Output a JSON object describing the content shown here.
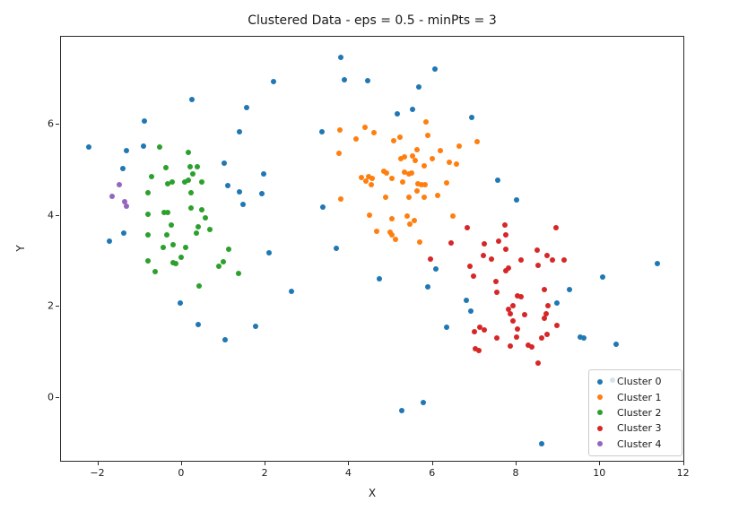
{
  "chart_data": {
    "type": "scatter",
    "title": "Clustered Data - eps = 0.5 - minPts = 3",
    "xlabel": "X",
    "ylabel": "Y",
    "xlim": [
      -2.89,
      12.03
    ],
    "ylim": [
      -1.42,
      7.94
    ],
    "xticks": [
      {
        "value": -2,
        "label": "−2"
      },
      {
        "value": 0,
        "label": "0"
      },
      {
        "value": 2,
        "label": "2"
      },
      {
        "value": 4,
        "label": "4"
      },
      {
        "value": 6,
        "label": "6"
      },
      {
        "value": 8,
        "label": "8"
      },
      {
        "value": 10,
        "label": "10"
      },
      {
        "value": 12,
        "label": "12"
      }
    ],
    "yticks": [
      {
        "value": 0,
        "label": "0"
      },
      {
        "value": 2,
        "label": "2"
      },
      {
        "value": 4,
        "label": "4"
      },
      {
        "value": 6,
        "label": "6"
      }
    ],
    "grid": false,
    "legend": {
      "position": "lower right",
      "bg_alpha": 0.8
    },
    "series": [
      {
        "name": "Cluster 0",
        "color": "#1f77b4",
        "points": [
          [
            0.23,
            6.57
          ],
          [
            1.55,
            6.39
          ],
          [
            -0.89,
            6.08
          ],
          [
            -2.23,
            5.51
          ],
          [
            -1.33,
            5.43
          ],
          [
            -0.91,
            5.53
          ],
          [
            1.37,
            5.86
          ],
          [
            -1.42,
            5.05
          ],
          [
            1.01,
            5.16
          ],
          [
            1.09,
            4.66
          ],
          [
            1.37,
            4.53
          ],
          [
            1.95,
            4.92
          ],
          [
            1.91,
            4.5
          ],
          [
            1.46,
            4.25
          ],
          [
            -1.39,
            3.62
          ],
          [
            -1.73,
            3.44
          ],
          [
            3.79,
            7.48
          ],
          [
            6.05,
            7.24
          ],
          [
            2.2,
            6.96
          ],
          [
            3.88,
            6.99
          ],
          [
            4.44,
            6.98
          ],
          [
            5.67,
            6.83
          ],
          [
            5.51,
            6.34
          ],
          [
            5.15,
            6.25
          ],
          [
            6.93,
            6.17
          ],
          [
            3.34,
            5.85
          ],
          [
            3.37,
            4.2
          ],
          [
            7.55,
            4.79
          ],
          [
            7.99,
            4.35
          ],
          [
            -0.04,
            2.09
          ],
          [
            0.39,
            1.62
          ],
          [
            1.76,
            1.57
          ],
          [
            1.03,
            1.27
          ],
          [
            2.08,
            3.19
          ],
          [
            3.69,
            3.28
          ],
          [
            4.71,
            2.61
          ],
          [
            2.62,
            2.35
          ],
          [
            6.07,
            2.83
          ],
          [
            5.87,
            2.44
          ],
          [
            6.79,
            2.14
          ],
          [
            6.9,
            1.92
          ],
          [
            6.33,
            1.55
          ],
          [
            5.77,
            -0.1
          ],
          [
            5.25,
            -0.27
          ],
          [
            11.36,
            2.96
          ],
          [
            10.05,
            2.65
          ],
          [
            9.26,
            2.38
          ],
          [
            8.97,
            2.09
          ],
          [
            9.52,
            1.34
          ],
          [
            9.61,
            1.32
          ],
          [
            10.37,
            1.18
          ],
          [
            8.6,
            -1.01
          ],
          [
            10.29,
            0.39
          ]
        ]
      },
      {
        "name": "Cluster 1",
        "color": "#ff7f0e",
        "points": [
          [
            3.77,
            5.9
          ],
          [
            4.38,
            5.95
          ],
          [
            4.6,
            5.83
          ],
          [
            4.16,
            5.7
          ],
          [
            5.07,
            5.65
          ],
          [
            5.21,
            5.73
          ],
          [
            5.83,
            6.07
          ],
          [
            5.87,
            5.78
          ],
          [
            3.75,
            5.37
          ],
          [
            5.62,
            5.46
          ],
          [
            6.18,
            5.43
          ],
          [
            6.62,
            5.53
          ],
          [
            7.05,
            5.64
          ],
          [
            5.23,
            5.26
          ],
          [
            5.31,
            5.29
          ],
          [
            5.52,
            5.32
          ],
          [
            5.57,
            5.22
          ],
          [
            5.99,
            5.26
          ],
          [
            6.39,
            5.18
          ],
          [
            6.57,
            5.14
          ],
          [
            5.79,
            5.1
          ],
          [
            5.32,
            4.97
          ],
          [
            5.42,
            4.92
          ],
          [
            5.49,
            4.94
          ],
          [
            4.82,
            4.98
          ],
          [
            4.89,
            4.95
          ],
          [
            4.3,
            4.85
          ],
          [
            4.46,
            4.87
          ],
          [
            4.55,
            4.82
          ],
          [
            4.39,
            4.76
          ],
          [
            4.53,
            4.69
          ],
          [
            5.03,
            4.82
          ],
          [
            5.27,
            4.74
          ],
          [
            5.64,
            4.7
          ],
          [
            5.73,
            4.69
          ],
          [
            5.82,
            4.68
          ],
          [
            5.63,
            4.55
          ],
          [
            6.12,
            4.46
          ],
          [
            6.32,
            4.73
          ],
          [
            3.8,
            4.38
          ],
          [
            4.88,
            4.41
          ],
          [
            5.42,
            4.41
          ],
          [
            5.79,
            4.42
          ],
          [
            4.49,
            4.02
          ],
          [
            5.02,
            3.94
          ],
          [
            5.38,
            3.99
          ],
          [
            5.44,
            3.83
          ],
          [
            5.56,
            3.9
          ],
          [
            6.47,
            3.99
          ],
          [
            4.65,
            3.67
          ],
          [
            4.98,
            3.64
          ],
          [
            5.01,
            3.58
          ],
          [
            5.11,
            3.49
          ],
          [
            5.68,
            3.43
          ]
        ]
      },
      {
        "name": "Cluster 2",
        "color": "#2ca02c",
        "points": [
          [
            -0.54,
            5.52
          ],
          [
            0.16,
            5.39
          ],
          [
            -0.38,
            5.06
          ],
          [
            0.19,
            5.08
          ],
          [
            0.36,
            5.09
          ],
          [
            0.27,
            4.93
          ],
          [
            -0.73,
            4.87
          ],
          [
            -0.33,
            4.7
          ],
          [
            -0.24,
            4.75
          ],
          [
            0.07,
            4.75
          ],
          [
            0.16,
            4.78
          ],
          [
            0.47,
            4.74
          ],
          [
            0.22,
            4.51
          ],
          [
            -0.8,
            4.51
          ],
          [
            -0.81,
            4.04
          ],
          [
            -0.43,
            4.07
          ],
          [
            -0.34,
            4.07
          ],
          [
            0.22,
            4.18
          ],
          [
            0.48,
            4.14
          ],
          [
            0.56,
            3.95
          ],
          [
            -0.26,
            3.8
          ],
          [
            0.39,
            3.76
          ],
          [
            0.66,
            3.7
          ],
          [
            -0.81,
            3.59
          ],
          [
            -0.36,
            3.59
          ],
          [
            0.34,
            3.62
          ],
          [
            -0.44,
            3.31
          ],
          [
            -0.21,
            3.36
          ],
          [
            0.08,
            3.3
          ],
          [
            1.11,
            3.27
          ],
          [
            -0.82,
            3.01
          ],
          [
            -0.21,
            2.98
          ],
          [
            -0.14,
            2.96
          ],
          [
            -0.02,
            3.09
          ],
          [
            -0.63,
            2.77
          ],
          [
            0.42,
            2.46
          ],
          [
            0.88,
            2.9
          ],
          [
            1.0,
            3.0
          ],
          [
            1.35,
            2.74
          ]
        ]
      },
      {
        "name": "Cluster 3",
        "color": "#d62728",
        "points": [
          [
            6.83,
            3.74
          ],
          [
            6.43,
            3.41
          ],
          [
            7.72,
            3.81
          ],
          [
            8.95,
            3.74
          ],
          [
            7.74,
            3.59
          ],
          [
            7.57,
            3.44
          ],
          [
            7.22,
            3.38
          ],
          [
            7.75,
            3.27
          ],
          [
            8.5,
            3.26
          ],
          [
            7.21,
            3.13
          ],
          [
            7.39,
            3.06
          ],
          [
            8.11,
            3.03
          ],
          [
            8.51,
            2.92
          ],
          [
            8.72,
            3.13
          ],
          [
            8.85,
            3.03
          ],
          [
            9.13,
            3.04
          ],
          [
            7.8,
            2.86
          ],
          [
            7.74,
            2.8
          ],
          [
            5.94,
            3.05
          ],
          [
            6.88,
            2.9
          ],
          [
            6.97,
            2.68
          ],
          [
            7.51,
            2.57
          ],
          [
            7.53,
            2.33
          ],
          [
            8.02,
            2.25
          ],
          [
            8.1,
            2.23
          ],
          [
            7.92,
            2.03
          ],
          [
            7.8,
            1.95
          ],
          [
            7.84,
            1.85
          ],
          [
            7.92,
            1.7
          ],
          [
            8.2,
            1.83
          ],
          [
            8.67,
            2.39
          ],
          [
            8.75,
            2.02
          ],
          [
            8.71,
            1.86
          ],
          [
            8.66,
            1.75
          ],
          [
            8.97,
            1.6
          ],
          [
            8.02,
            1.51
          ],
          [
            7.12,
            1.55
          ],
          [
            7.23,
            1.49
          ],
          [
            6.99,
            1.46
          ],
          [
            7.52,
            1.31
          ],
          [
            7.86,
            1.15
          ],
          [
            7.99,
            1.33
          ],
          [
            8.27,
            1.16
          ],
          [
            8.36,
            1.12
          ],
          [
            8.6,
            1.32
          ],
          [
            8.72,
            1.39
          ],
          [
            7.02,
            1.08
          ],
          [
            7.11,
            1.05
          ],
          [
            8.52,
            0.76
          ]
        ]
      },
      {
        "name": "Cluster 4",
        "color": "#9467bd",
        "points": [
          [
            -1.49,
            4.69
          ],
          [
            -1.66,
            4.43
          ],
          [
            -1.37,
            4.32
          ],
          [
            -1.32,
            4.22
          ]
        ]
      }
    ]
  }
}
